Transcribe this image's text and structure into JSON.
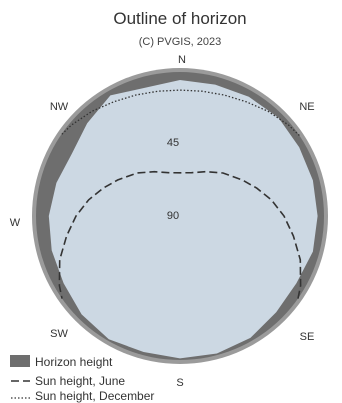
{
  "chart_data": {
    "type": "polar-horizon",
    "title": "Outline of horizon",
    "subtitle": "(C) PVGIS, 2023",
    "directions": [
      "N",
      "NE",
      "SE",
      "S",
      "SW",
      "W",
      "NW"
    ],
    "elevation_labels": [
      "45",
      "90"
    ],
    "legend": [
      {
        "key": "horizon",
        "label": "Horizon height"
      },
      {
        "key": "june",
        "label": "Sun height, June"
      },
      {
        "key": "december",
        "label": "Sun height, December"
      }
    ],
    "horizon_profile": {
      "azimuth_deg": [
        0,
        30,
        45,
        60,
        75,
        90,
        105,
        120,
        135,
        150,
        165,
        180,
        195,
        210,
        225,
        240,
        255,
        270,
        285,
        300,
        315,
        330,
        345,
        360
      ],
      "height_deg": [
        5,
        3,
        8,
        12,
        10,
        8,
        7,
        6,
        3,
        1,
        2,
        1,
        1,
        2,
        5,
        6,
        4,
        4,
        4,
        4,
        3,
        4,
        5,
        5
      ]
    },
    "sun_june": {
      "azimuth_deg": [
        -125,
        -120,
        -110,
        -100,
        -90,
        -80,
        -70,
        -60,
        -45,
        -30,
        -15,
        0,
        15,
        30,
        45,
        60,
        70,
        80,
        90,
        100,
        110,
        120,
        125
      ],
      "elevation_deg": [
        0,
        3,
        10,
        18,
        25,
        32,
        39,
        45,
        52,
        58,
        62,
        63,
        62,
        58,
        52,
        45,
        39,
        32,
        25,
        18,
        10,
        3,
        0
      ]
    },
    "sun_december": {
      "azimuth_deg": [
        -56,
        -50,
        -40,
        -30,
        -20,
        -10,
        0,
        10,
        20,
        30,
        40,
        50,
        56
      ],
      "elevation_deg": [
        0,
        1.5,
        4.5,
        7.5,
        9.5,
        10.8,
        11.3,
        10.8,
        9.5,
        7.5,
        4.5,
        1.5,
        0
      ]
    },
    "colors": {
      "sky": "#ccd8e3",
      "horizon": "#6e6e6e",
      "outline": "#9b9b9b",
      "june_line": "#333333",
      "december_line": "#333333"
    }
  }
}
